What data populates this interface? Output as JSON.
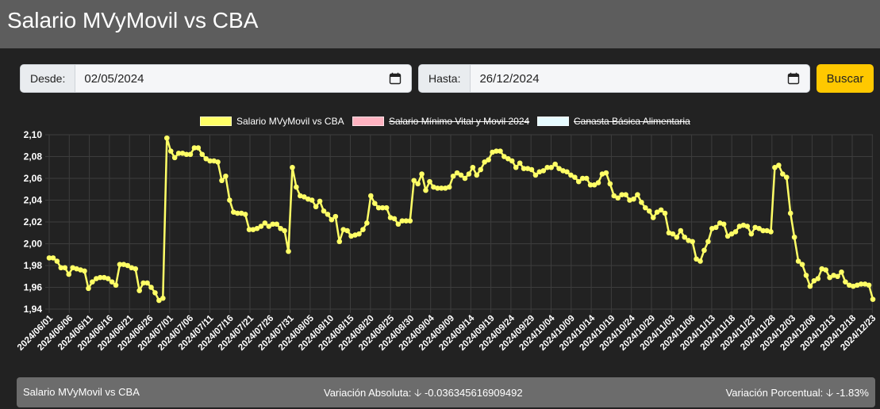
{
  "header": {
    "title": "Salario MVyMovil vs CBA"
  },
  "filters": {
    "desde_label": "Desde:",
    "desde_value": "02/05/2024",
    "hasta_label": "Hasta:",
    "hasta_value": "26/12/2024",
    "search_label": "Buscar",
    "calendar_icon": "calendar-icon"
  },
  "legend": [
    {
      "label": "Salario MVyMovil vs CBA",
      "color": "#ffff66",
      "hidden": false
    },
    {
      "label": "Salario Mínimo Vital y Movil 2024",
      "color": "#ffb3c1",
      "hidden": true
    },
    {
      "label": "Canasta Básica Alimentaria",
      "color": "#e6fbff",
      "hidden": true
    }
  ],
  "footer": {
    "series_label": "Salario MVyMovil vs CBA",
    "abs_label": "Variación Absoluta:",
    "abs_value": "-0.036345616909492",
    "pct_label": "Variación Porcentual:",
    "pct_value": "-1.83%",
    "arrow_icon": "arrow-down-icon"
  },
  "chart_data": {
    "type": "line",
    "title": "",
    "xlabel": "",
    "ylabel": "",
    "ylim": [
      1.94,
      2.1
    ],
    "y_ticks": [
      "1,94",
      "1,96",
      "1,98",
      "2,00",
      "2,02",
      "2,04",
      "2,06",
      "2,08",
      "2,10"
    ],
    "grid": true,
    "legend_position": "top-center",
    "x_tick_labels": [
      "2024/06/01",
      "2024/06/06",
      "2024/06/11",
      "2024/06/16",
      "2024/06/21",
      "2024/06/26",
      "2024/07/01",
      "2024/07/06",
      "2024/07/11",
      "2024/07/16",
      "2024/07/21",
      "2024/07/26",
      "2024/07/31",
      "2024/08/05",
      "2024/08/10",
      "2024/08/15",
      "2024/08/20",
      "2024/08/25",
      "2024/08/30",
      "2024/09/04",
      "2024/09/09",
      "2024/09/14",
      "2024/09/19",
      "2024/09/24",
      "2024/09/29",
      "2024/10/04",
      "2024/10/09",
      "2024/10/14",
      "2024/10/19",
      "2024/10/24",
      "2024/10/29",
      "2024/11/03",
      "2024/11/08",
      "2024/11/13",
      "2024/11/18",
      "2024/11/23",
      "2024/11/28",
      "2024/12/03",
      "2024/12/08",
      "2024/12/13",
      "2024/12/18",
      "2024/12/23"
    ],
    "series": [
      {
        "name": "Salario MVyMovil vs CBA",
        "color": "#ffff66",
        "values": [
          1.987,
          1.987,
          1.984,
          1.978,
          1.978,
          1.972,
          1.978,
          1.977,
          1.976,
          1.975,
          1.959,
          1.965,
          1.968,
          1.969,
          1.969,
          1.968,
          1.965,
          1.962,
          1.981,
          1.981,
          1.98,
          1.978,
          1.977,
          1.957,
          1.964,
          1.964,
          1.96,
          1.955,
          1.948,
          1.95,
          2.097,
          2.085,
          2.079,
          2.083,
          2.083,
          2.082,
          2.082,
          2.088,
          2.088,
          2.082,
          2.078,
          2.076,
          2.076,
          2.075,
          2.058,
          2.062,
          2.04,
          2.029,
          2.028,
          2.028,
          2.027,
          2.013,
          2.013,
          2.014,
          2.016,
          2.019,
          2.016,
          2.018,
          2.018,
          2.014,
          2.012,
          1.993,
          2.07,
          2.052,
          2.044,
          2.043,
          2.041,
          2.04,
          2.034,
          2.039,
          2.03,
          2.027,
          2.022,
          2.025,
          2.002,
          2.013,
          2.012,
          2.007,
          2.008,
          2.009,
          2.013,
          2.019,
          2.044,
          2.037,
          2.033,
          2.033,
          2.033,
          2.024,
          2.023,
          2.018,
          2.021,
          2.021,
          2.021,
          2.058,
          2.055,
          2.064,
          2.049,
          2.057,
          2.052,
          2.051,
          2.051,
          2.051,
          2.052,
          2.062,
          2.065,
          2.063,
          2.06,
          2.064,
          2.07,
          2.063,
          2.068,
          2.075,
          2.077,
          2.084,
          2.085,
          2.085,
          2.08,
          2.078,
          2.076,
          2.07,
          2.074,
          2.069,
          2.069,
          2.068,
          2.063,
          2.066,
          2.067,
          2.07,
          2.07,
          2.073,
          2.069,
          2.067,
          2.066,
          2.063,
          2.061,
          2.057,
          2.06,
          2.06,
          2.054,
          2.054,
          2.056,
          2.064,
          2.065,
          2.055,
          2.044,
          2.042,
          2.045,
          2.045,
          2.04,
          2.041,
          2.045,
          2.038,
          2.033,
          2.03,
          2.024,
          2.029,
          2.031,
          2.028,
          2.01,
          2.009,
          2.006,
          2.012,
          2.006,
          2.003,
          2.002,
          1.986,
          1.984,
          1.994,
          2.002,
          2.014,
          2.015,
          2.019,
          2.018,
          2.007,
          2.009,
          2.011,
          2.016,
          2.017,
          2.016,
          2.009,
          2.015,
          2.014,
          2.012,
          2.012,
          2.011,
          2.07,
          2.072,
          2.064,
          2.061,
          2.028,
          2.006,
          1.984,
          1.981,
          1.971,
          1.961,
          1.966,
          1.968,
          1.977,
          1.976,
          1.969,
          1.971,
          1.97,
          1.974,
          1.965,
          1.962,
          1.961,
          1.962,
          1.963,
          1.963,
          1.962,
          1.949
        ]
      }
    ]
  }
}
